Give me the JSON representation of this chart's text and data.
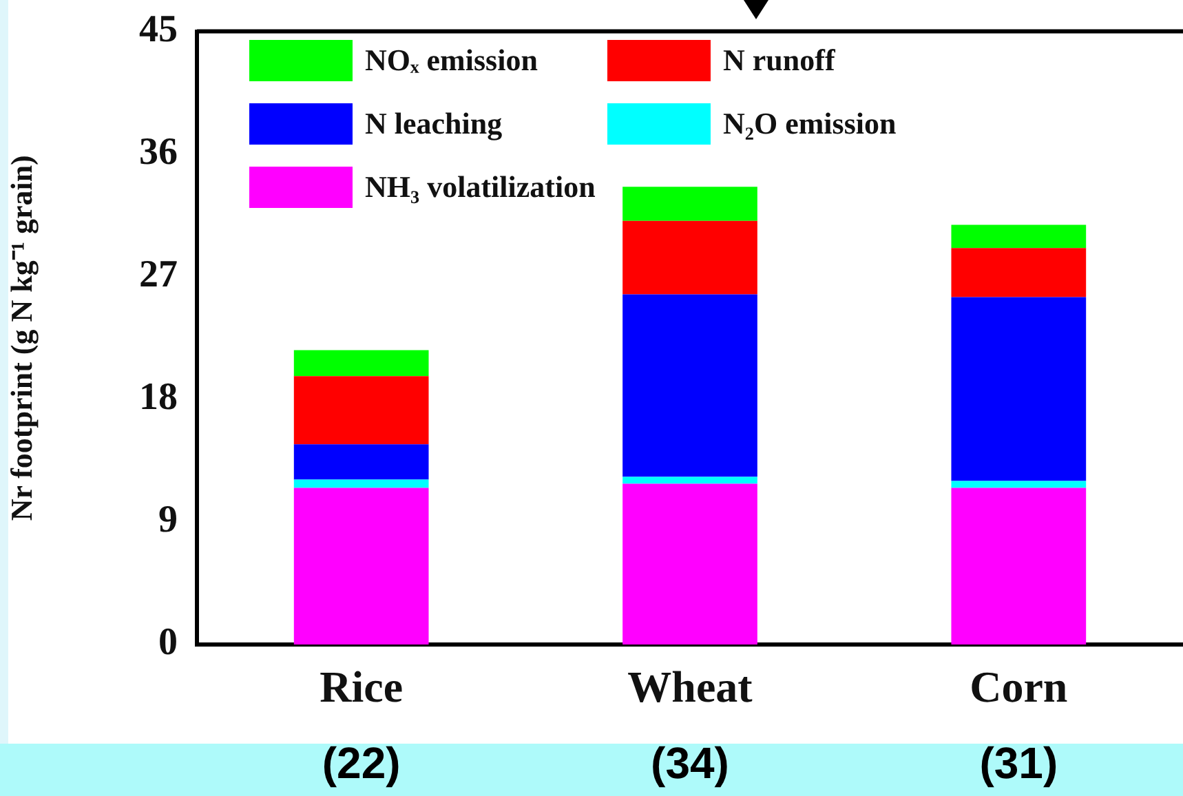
{
  "chart_data": {
    "type": "bar",
    "stacked": true,
    "ylabel": "Nr footprint (g N kg⁻¹ grain)",
    "categories": [
      "Rice",
      "Wheat",
      "Corn"
    ],
    "series": [
      {
        "name": "NH₃ volatilization",
        "color": "#ff00ff",
        "values": [
          11.5,
          11.8,
          11.5
        ]
      },
      {
        "name": "N₂O emission",
        "color": "#00ffff",
        "values": [
          0.6,
          0.5,
          0.5
        ]
      },
      {
        "name": "N leaching",
        "color": "#0000ff",
        "values": [
          2.6,
          13.4,
          13.5
        ]
      },
      {
        "name": "N runoff",
        "color": "#ff0000",
        "values": [
          5.0,
          5.4,
          3.6
        ]
      },
      {
        "name": "NOₓ emission",
        "color": "#00ff00",
        "values": [
          1.9,
          2.5,
          1.7
        ]
      }
    ],
    "ylim": [
      0,
      45
    ],
    "yticks": [
      0,
      9,
      18,
      27,
      36,
      45
    ],
    "legend": "top left",
    "totals": [
      "(22)",
      "(34)",
      "(31)"
    ]
  }
}
